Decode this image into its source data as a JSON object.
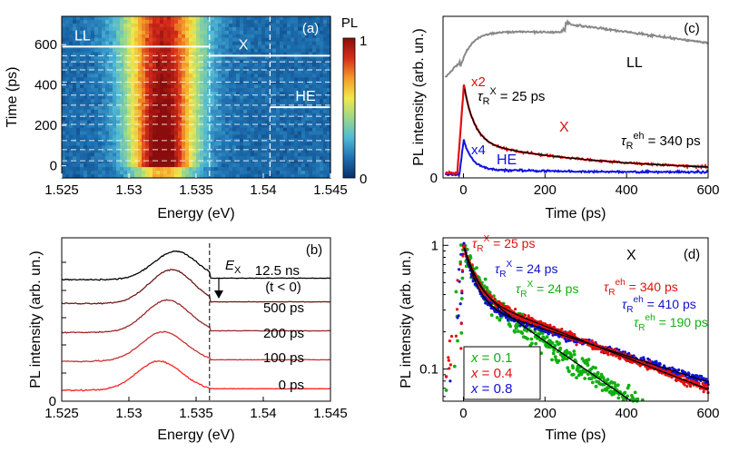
{
  "chart_data": [
    {
      "panel": "a",
      "type": "heatmap",
      "panel_label": "(a)",
      "xlabel": "Energy (eV)",
      "ylabel": "Time (ps)",
      "xlim": [
        1.525,
        1.545
      ],
      "ylim": [
        -60,
        740
      ],
      "xticks": [
        1.525,
        1.53,
        1.535,
        1.54,
        1.545
      ],
      "yticks": [
        0,
        200,
        400,
        600
      ],
      "colorbar": {
        "label": "PL",
        "min_label": "0",
        "max_label": "1",
        "colors": [
          "#08306b",
          "#1d6fb0",
          "#4fb9d6",
          "#9ad88a",
          "#f3e84a",
          "#f39a2a",
          "#d62d1a",
          "#8a0d0d"
        ]
      },
      "peak": {
        "center": 1.5325,
        "width_start": 0.0016,
        "width_end": 0.0021
      },
      "dashed_vertical_lines": [
        1.536,
        1.5405
      ],
      "dashed_horizontal_lines": [
        25,
        80,
        125,
        205,
        245,
        300,
        350,
        415,
        475,
        515,
        545
      ],
      "regions": [
        {
          "label": "LL",
          "line_y": 590,
          "x_from": 1.525,
          "x_to": 1.536
        },
        {
          "label": "X",
          "line_y": 545,
          "x_from": 1.536,
          "x_to": 1.545
        },
        {
          "label": "HE",
          "line_y": 290,
          "x_from": 1.5405,
          "x_to": 1.545
        }
      ]
    },
    {
      "panel": "b",
      "type": "line",
      "panel_label": "(b)",
      "xlabel": "Energy (eV)",
      "ylabel": "PL intensity (arb. un.)",
      "xlim": [
        1.525,
        1.545
      ],
      "xticks": [
        1.525,
        1.53,
        1.535,
        1.54,
        1.545
      ],
      "y_zero_label": "0",
      "marker_line": {
        "x": 1.536,
        "label": "E",
        "sub": "X"
      },
      "series": [
        {
          "name": "0 ps",
          "offset": 0.0,
          "amp": 0.55,
          "color": "#ff2020",
          "label": "0 ps"
        },
        {
          "name": "100 ps",
          "offset": 0.55,
          "amp": 0.55,
          "color": "#c83030",
          "label": "100 ps"
        },
        {
          "name": "200 ps",
          "offset": 1.1,
          "amp": 0.6,
          "color": "#9a2828",
          "label": "200 ps"
        },
        {
          "name": "500 ps",
          "offset": 1.65,
          "amp": 0.62,
          "color": "#6a1a1a",
          "label": "500 ps"
        },
        {
          "name": "12.5 ns",
          "offset": 2.1,
          "amp": 0.52,
          "color": "#000000",
          "label": "12.5 ns",
          "label2": "(t < 0)"
        }
      ]
    },
    {
      "panel": "c",
      "type": "line",
      "panel_label": "(c)",
      "xlabel": "Time (ps)",
      "ylabel": "PL intensity (arb. un.)",
      "xlim": [
        -50,
        600
      ],
      "ylim": [
        0,
        1.0
      ],
      "xticks": [
        0,
        200,
        400,
        600
      ],
      "y_zero_label": "0",
      "series": [
        {
          "name": "LL",
          "color": "#888888",
          "label": "LL"
        },
        {
          "name": "X",
          "color": "#e01010",
          "label": "X",
          "scale_label": "x2",
          "fit_color": "#000000"
        },
        {
          "name": "HE",
          "color": "#1010e0",
          "label": "HE",
          "scale_label": "x4"
        }
      ],
      "annotations": {
        "tau_x": {
          "symbol": "τ",
          "sub": "R",
          "sup": "X",
          "text": "= 25 ps"
        },
        "tau_eh": {
          "symbol": "τ",
          "sub": "R",
          "sup": "eh",
          "text": "= 340 ps"
        }
      }
    },
    {
      "panel": "d",
      "type": "scatter",
      "panel_label": "(d)",
      "title": "X",
      "xlabel": "Time (ps)",
      "ylabel": "PL intensity (arb. un.)",
      "xlim": [
        -50,
        600
      ],
      "ylim": [
        0.055,
        1.15
      ],
      "yscale": "log",
      "xticks": [
        0,
        200,
        400,
        600
      ],
      "yticks": [
        0.1,
        1
      ],
      "ytick_labels": [
        "0.1",
        "1"
      ],
      "series": [
        {
          "x_value": "0.1",
          "color": "#10b010",
          "tau_x": 24,
          "tau_eh": 190,
          "A": 0.48
        },
        {
          "x_value": "0.4",
          "color": "#e01010",
          "tau_x": 25,
          "tau_eh": 340,
          "A": 0.4
        },
        {
          "x_value": "0.8",
          "color": "#1010d0",
          "tau_x": 24,
          "tau_eh": 410,
          "A": 0.34
        }
      ],
      "annotations": [
        {
          "color": "#e01010",
          "sup": "X",
          "text": "= 25 ps"
        },
        {
          "color": "#1010d0",
          "sup": "X",
          "text": "= 24 ps"
        },
        {
          "color": "#10b010",
          "sup": "X",
          "text": "= 24 ps"
        },
        {
          "color": "#e01010",
          "sup": "eh",
          "text": "= 340 ps"
        },
        {
          "color": "#1010d0",
          "sup": "eh",
          "text": "= 410 ps"
        },
        {
          "color": "#10b010",
          "sup": "eh",
          "text": "= 190 ps"
        }
      ],
      "legend": {
        "placement": "bottom-left",
        "var": "x",
        "eq": " = "
      }
    }
  ]
}
